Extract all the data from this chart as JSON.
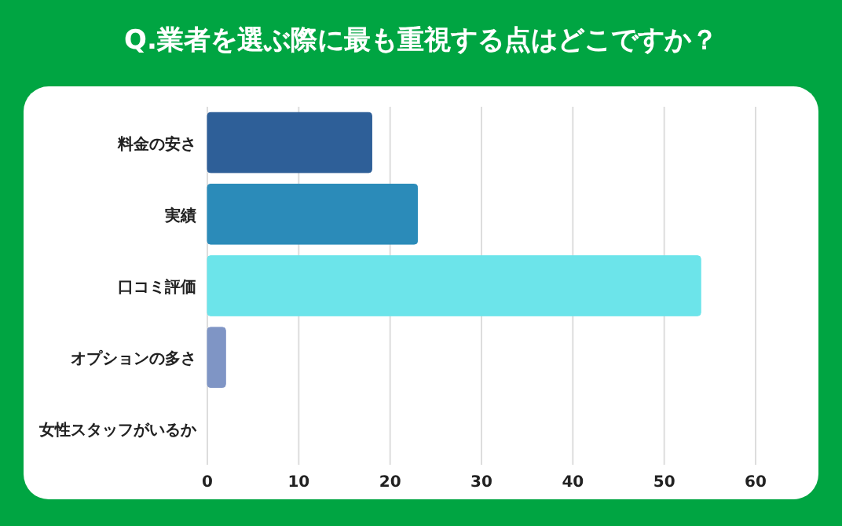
{
  "chart_data": {
    "type": "bar",
    "orientation": "horizontal",
    "title": "Q.業者を選ぶ際に最も重視する点はどこですか？",
    "categories": [
      "料金の安さ",
      "実績",
      "口コミ評価",
      "オプションの多さ",
      "女性スタッフがいるか"
    ],
    "values": [
      18,
      23,
      54,
      2,
      0
    ],
    "colors": [
      "#2e5f98",
      "#2b8bb9",
      "#6ce4ea",
      "#7f95c5",
      "#7f95c5"
    ],
    "xlim": [
      0,
      60
    ],
    "xticks": [
      0,
      10,
      20,
      30,
      40,
      50,
      60
    ],
    "grid": "x"
  }
}
